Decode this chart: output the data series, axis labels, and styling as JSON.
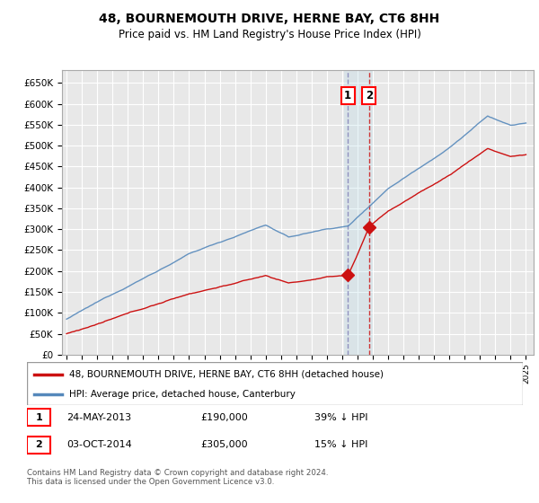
{
  "title": "48, BOURNEMOUTH DRIVE, HERNE BAY, CT6 8HH",
  "subtitle": "Price paid vs. HM Land Registry's House Price Index (HPI)",
  "legend_line1": "48, BOURNEMOUTH DRIVE, HERNE BAY, CT6 8HH (detached house)",
  "legend_line2": "HPI: Average price, detached house, Canterbury",
  "transaction1_date": "24-MAY-2013",
  "transaction1_price": 190000,
  "transaction1_label": "39% ↓ HPI",
  "transaction2_date": "03-OCT-2014",
  "transaction2_price": 305000,
  "transaction2_label": "15% ↓ HPI",
  "footer": "Contains HM Land Registry data © Crown copyright and database right 2024.\nThis data is licensed under the Open Government Licence v3.0.",
  "hpi_color": "#5588bb",
  "price_color": "#cc1111",
  "background_color": "#ffffff",
  "chart_bg": "#e8e8e8",
  "grid_color": "#ffffff",
  "ylim": [
    0,
    680000
  ],
  "yticks": [
    0,
    50000,
    100000,
    150000,
    200000,
    250000,
    300000,
    350000,
    400000,
    450000,
    500000,
    550000,
    600000,
    650000
  ],
  "t1_year": 2013.37,
  "t2_year": 2014.75,
  "t1_price": 190000,
  "t2_price": 305000
}
